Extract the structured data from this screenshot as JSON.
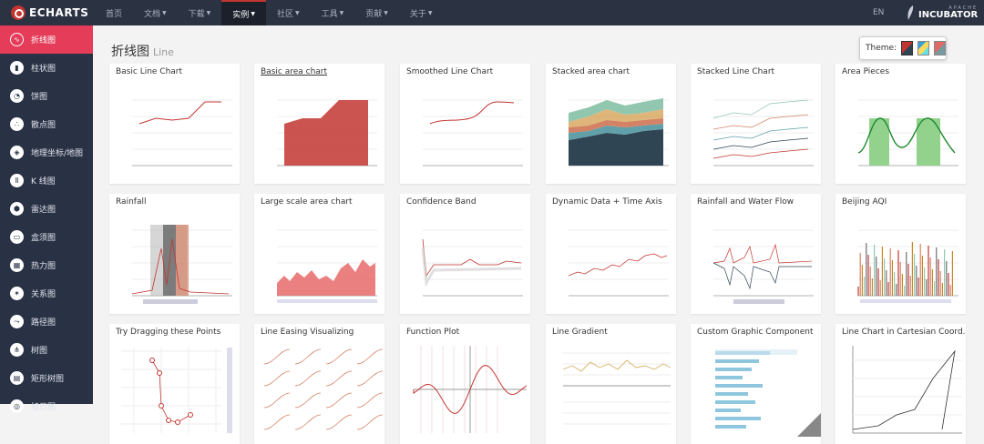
{
  "brand": {
    "name": "ECHARTS"
  },
  "nav": [
    {
      "label": "首页",
      "caret": false,
      "active": false
    },
    {
      "label": "文档",
      "caret": true,
      "active": false
    },
    {
      "label": "下载",
      "caret": true,
      "active": false
    },
    {
      "label": "实例",
      "caret": true,
      "active": true
    },
    {
      "label": "社区",
      "caret": true,
      "active": false
    },
    {
      "label": "工具",
      "caret": true,
      "active": false
    },
    {
      "label": "贡献",
      "caret": true,
      "active": false
    },
    {
      "label": "关于",
      "caret": true,
      "active": false
    }
  ],
  "lang": "EN",
  "incubator": {
    "small": "APACHE",
    "big": "INCUBATOR"
  },
  "sidebar": [
    {
      "label": "折线图",
      "active": true,
      "icon": "line-chart-icon"
    },
    {
      "label": "柱状图",
      "active": false,
      "icon": "bar-chart-icon"
    },
    {
      "label": "饼图",
      "active": false,
      "icon": "pie-chart-icon"
    },
    {
      "label": "散点图",
      "active": false,
      "icon": "scatter-icon"
    },
    {
      "label": "地理坐标/地图",
      "active": false,
      "icon": "map-icon"
    },
    {
      "label": "K 线图",
      "active": false,
      "icon": "candlestick-icon"
    },
    {
      "label": "雷达图",
      "active": false,
      "icon": "radar-icon"
    },
    {
      "label": "盒须图",
      "active": false,
      "icon": "boxplot-icon"
    },
    {
      "label": "热力图",
      "active": false,
      "icon": "heatmap-icon"
    },
    {
      "label": "关系图",
      "active": false,
      "icon": "graph-icon"
    },
    {
      "label": "路径图",
      "active": false,
      "icon": "lines-icon"
    },
    {
      "label": "树图",
      "active": false,
      "icon": "tree-icon"
    },
    {
      "label": "矩形树图",
      "active": false,
      "icon": "treemap-icon"
    },
    {
      "label": "旭日图",
      "active": false,
      "icon": "sunburst-icon"
    }
  ],
  "page": {
    "title": "折线图",
    "subtitle": "Line"
  },
  "theme": {
    "label": "Theme:"
  },
  "cards": [
    {
      "title": "Basic Line Chart",
      "kind": "line",
      "link": false
    },
    {
      "title": "Basic area chart",
      "kind": "area",
      "link": true
    },
    {
      "title": "Smoothed Line Chart",
      "kind": "smooth",
      "link": false
    },
    {
      "title": "Stacked area chart",
      "kind": "stacked-area",
      "link": false
    },
    {
      "title": "Stacked Line Chart",
      "kind": "stacked-line",
      "link": false
    },
    {
      "title": "Area Pieces",
      "kind": "pieces",
      "link": false
    },
    {
      "title": "Rainfall",
      "kind": "rainfall",
      "link": false
    },
    {
      "title": "Large scale area chart",
      "kind": "large-area",
      "link": false
    },
    {
      "title": "Confidence Band",
      "kind": "band",
      "link": false
    },
    {
      "title": "Dynamic Data + Time Axis",
      "kind": "dynamic",
      "link": false
    },
    {
      "title": "Rainfall and Water Flow",
      "kind": "waterflow",
      "link": false
    },
    {
      "title": "Beijing AQI",
      "kind": "aqi",
      "link": false
    },
    {
      "title": "Try Dragging these Points",
      "kind": "drag",
      "link": false
    },
    {
      "title": "Line Easing Visualizing",
      "kind": "easing",
      "link": false
    },
    {
      "title": "Function Plot",
      "kind": "function",
      "link": false
    },
    {
      "title": "Line Gradient",
      "kind": "gradient",
      "link": false
    },
    {
      "title": "Custom Graphic Component",
      "kind": "graphic",
      "link": false
    },
    {
      "title": "Line Chart in Cartesian Coord...",
      "kind": "cartesian",
      "link": false
    }
  ]
}
